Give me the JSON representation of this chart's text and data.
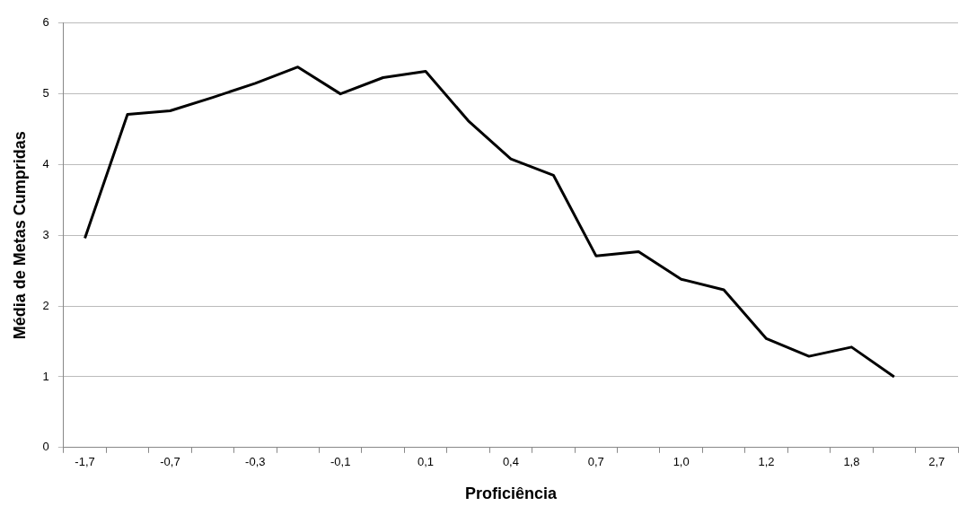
{
  "chart_data": {
    "type": "line",
    "xlabel": "Proficiência",
    "ylabel": "Média de Metas Cumpridas",
    "categories": [
      "-1,7",
      null,
      "-0,7",
      null,
      "-0,3",
      null,
      "-0,1",
      null,
      "0,1",
      null,
      "0,4",
      null,
      "0,7",
      null,
      "1,0",
      null,
      "1,2",
      null,
      "1,8",
      null,
      "2,7"
    ],
    "series": [
      {
        "color": "#000000",
        "values": [
          2.96,
          4.71,
          4.76,
          4.95,
          5.15,
          5.38,
          5.0,
          5.23,
          5.32,
          4.62,
          4.08,
          3.85,
          2.71,
          2.77,
          2.38,
          2.23,
          1.54,
          1.29,
          1.42,
          1.0,
          null
        ]
      }
    ],
    "ylim": [
      0,
      6
    ],
    "yticks": [
      0,
      1,
      2,
      3,
      4,
      5,
      6
    ],
    "grid": "y",
    "legend": false,
    "marker": "none",
    "line_style": "solid"
  }
}
